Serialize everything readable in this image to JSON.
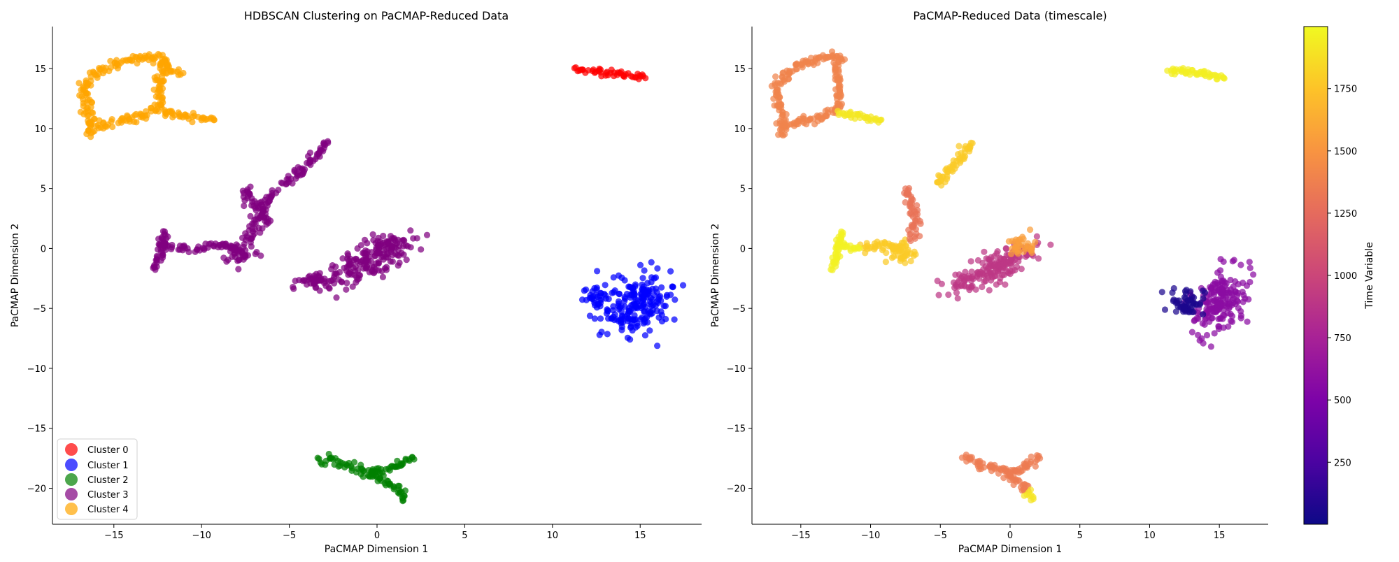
{
  "chart_data": [
    {
      "type": "scatter",
      "title": "HDBSCAN Clustering on PaCMAP-Reduced Data",
      "xlabel": "PaCMAP Dimension 1",
      "ylabel": "PaCMAP Dimension 2",
      "xlim": [
        -18.5,
        18.5
      ],
      "ylim": [
        -23,
        18.5
      ],
      "xticks": [
        -15,
        -10,
        -5,
        0,
        5,
        10,
        15
      ],
      "yticks": [
        -20,
        -15,
        -10,
        -5,
        0,
        5,
        10,
        15
      ],
      "grid": false,
      "legend_position": "lower-left",
      "series": [
        {
          "name": "Cluster 0",
          "color": "#ff0000",
          "shapes": [
            {
              "kind": "path",
              "pts": [
                [
                  11.3,
                  14.9
                ],
                [
                  12.5,
                  14.8
                ],
                [
                  14.0,
                  14.5
                ],
                [
                  15.3,
                  14.2
                ]
              ],
              "w": 0.4
            }
          ]
        },
        {
          "name": "Cluster 1",
          "color": "#0000ff",
          "shapes": [
            {
              "kind": "blob",
              "cx": 14.8,
              "cy": -4.6,
              "rx": 1.8,
              "ry": 2.8,
              "rot": -0.4
            },
            {
              "kind": "blob",
              "cx": 12.6,
              "cy": -4.1,
              "rx": 0.9,
              "ry": 0.9,
              "rot": 0
            }
          ]
        },
        {
          "name": "Cluster 2",
          "color": "#008000",
          "shapes": [
            {
              "kind": "path",
              "pts": [
                [
                  -3.3,
                  -17.4
                ],
                [
                  -1.5,
                  -18.2
                ],
                [
                  -0.3,
                  -18.8
                ],
                [
                  0.9,
                  -18.3
                ],
                [
                  2.0,
                  -17.4
                ]
              ],
              "w": 0.55
            },
            {
              "kind": "path",
              "pts": [
                [
                  -0.3,
                  -18.8
                ],
                [
                  0.5,
                  -19.5
                ],
                [
                  1.0,
                  -19.9
                ],
                [
                  1.3,
                  -20.2
                ],
                [
                  1.5,
                  -21.0
                ]
              ],
              "w": 0.45
            }
          ]
        },
        {
          "name": "Cluster 3",
          "color": "#800080",
          "shapes": [
            {
              "kind": "blob",
              "cx": -0.5,
              "cy": -1.2,
              "rx": 2.7,
              "ry": 1.2,
              "rot": 0.55
            },
            {
              "kind": "blob",
              "cx": 0.6,
              "cy": 0.3,
              "rx": 1.5,
              "ry": 0.9,
              "rot": 0.2
            },
            {
              "kind": "blob",
              "cx": -3.4,
              "cy": -2.8,
              "rx": 1.4,
              "ry": 0.8,
              "rot": 0.3
            },
            {
              "kind": "blob",
              "cx": -7.8,
              "cy": -0.3,
              "rx": 1.1,
              "ry": 1.0,
              "rot": 0
            },
            {
              "kind": "path",
              "pts": [
                [
                  -7.5,
                  5.0
                ],
                [
                  -6.8,
                  2.8
                ],
                [
                  -7.2,
                  0.5
                ]
              ],
              "w": 0.55
            },
            {
              "kind": "path",
              "pts": [
                [
                  -10.5,
                  0.0
                ],
                [
                  -9.2,
                  0.3
                ],
                [
                  -8.2,
                  0.1
                ]
              ],
              "w": 0.45
            },
            {
              "kind": "path",
              "pts": [
                [
                  -12.8,
                  -1.7
                ],
                [
                  -12.4,
                  -0.5
                ],
                [
                  -12.3,
                  0.5
                ],
                [
                  -12.1,
                  1.4
                ]
              ],
              "w": 0.4
            },
            {
              "kind": "path",
              "pts": [
                [
                  -12.3,
                  0.3
                ],
                [
                  -11.5,
                  0.1
                ],
                [
                  -10.8,
                  0.0
                ]
              ],
              "w": 0.35
            },
            {
              "kind": "path",
              "pts": [
                [
                  -5.3,
                  5.3
                ],
                [
                  -4.0,
                  7.0
                ],
                [
                  -2.8,
                  8.8
                ]
              ],
              "w": 0.45
            },
            {
              "kind": "path",
              "pts": [
                [
                  -5.8,
                  4.8
                ],
                [
                  -6.5,
                  3.5
                ],
                [
                  -6.3,
                  2.0
                ]
              ],
              "w": 0.35
            }
          ]
        },
        {
          "name": "Cluster 4",
          "color": "#ffa500",
          "shapes": [
            {
              "kind": "path",
              "pts": [
                [
                  -16.3,
                  9.4
                ],
                [
                  -16.3,
                  10.8
                ],
                [
                  -16.6,
                  12.0
                ],
                [
                  -16.7,
                  13.5
                ],
                [
                  -15.9,
                  14.8
                ],
                [
                  -14.4,
                  15.6
                ],
                [
                  -13.0,
                  16.1
                ],
                [
                  -12.1,
                  15.8
                ],
                [
                  -12.4,
                  14.3
                ],
                [
                  -12.3,
                  13.0
                ],
                [
                  -12.3,
                  11.7
                ],
                [
                  -13.4,
                  11.0
                ],
                [
                  -14.8,
                  10.6
                ],
                [
                  -16.0,
                  10.2
                ]
              ],
              "w": 0.5
            },
            {
              "kind": "path",
              "pts": [
                [
                  -12.3,
                  11.3
                ],
                [
                  -11.2,
                  11.1
                ],
                [
                  -10.1,
                  10.9
                ],
                [
                  -9.3,
                  10.7
                ]
              ],
              "w": 0.4
            },
            {
              "kind": "path",
              "pts": [
                [
                  -12.2,
                  15.7
                ],
                [
                  -11.7,
                  14.8
                ],
                [
                  -11.2,
                  14.5
                ]
              ],
              "w": 0.45
            }
          ]
        }
      ]
    },
    {
      "type": "scatter",
      "title": "PaCMAP-Reduced Data (timescale)",
      "xlabel": "PaCMAP Dimension 1",
      "ylabel": "PaCMAP Dimension 2",
      "xlim": [
        -18.5,
        18.5
      ],
      "ylim": [
        -23,
        18.5
      ],
      "xticks": [
        -15,
        -10,
        -5,
        0,
        5,
        10,
        15
      ],
      "yticks": [
        -20,
        -15,
        -10,
        -5,
        0,
        5,
        10,
        15
      ],
      "grid": false,
      "colormap": "plasma",
      "colorbar": {
        "label": "Time Variable",
        "min": 1,
        "max": 1999,
        "ticks": [
          250,
          500,
          750,
          1000,
          1250,
          1500,
          1750
        ]
      },
      "series": [
        {
          "time": 1950,
          "shapes": [
            {
              "kind": "path",
              "pts": [
                [
                  11.3,
                  14.9
                ],
                [
                  12.5,
                  14.8
                ],
                [
                  14.0,
                  14.5
                ],
                [
                  15.3,
                  14.2
                ]
              ],
              "w": 0.4
            }
          ]
        },
        {
          "time": 580,
          "shapes": [
            {
              "kind": "blob",
              "cx": 14.9,
              "cy": -4.6,
              "rx": 1.7,
              "ry": 2.8,
              "rot": -0.4
            }
          ]
        },
        {
          "time": 60,
          "shapes": [
            {
              "kind": "blob",
              "cx": 12.7,
              "cy": -4.4,
              "rx": 1.2,
              "ry": 1.2,
              "rot": 0
            }
          ]
        },
        {
          "time": 1350,
          "shapes": [
            {
              "kind": "path",
              "pts": [
                [
                  -3.3,
                  -17.4
                ],
                [
                  -1.5,
                  -18.2
                ],
                [
                  -0.3,
                  -18.8
                ],
                [
                  0.9,
                  -18.3
                ],
                [
                  2.0,
                  -17.4
                ]
              ],
              "w": 0.55
            },
            {
              "kind": "path",
              "pts": [
                [
                  -0.3,
                  -18.8
                ],
                [
                  0.5,
                  -19.5
                ],
                [
                  1.0,
                  -19.9
                ],
                [
                  1.3,
                  -20.2
                ]
              ],
              "w": 0.45
            }
          ]
        },
        {
          "time": 1900,
          "shapes": [
            {
              "kind": "path",
              "pts": [
                [
                  1.2,
                  -20.4
                ],
                [
                  1.5,
                  -21.0
                ]
              ],
              "w": 0.4
            }
          ]
        },
        {
          "time": 1400,
          "shapes": [
            {
              "kind": "path",
              "pts": [
                [
                  -16.3,
                  9.4
                ],
                [
                  -16.3,
                  10.8
                ],
                [
                  -16.6,
                  12.0
                ],
                [
                  -16.7,
                  13.5
                ],
                [
                  -15.9,
                  14.8
                ],
                [
                  -14.4,
                  15.6
                ],
                [
                  -13.0,
                  16.1
                ],
                [
                  -12.1,
                  15.8
                ],
                [
                  -12.4,
                  14.3
                ],
                [
                  -12.3,
                  13.0
                ],
                [
                  -12.3,
                  11.7
                ],
                [
                  -13.4,
                  11.0
                ],
                [
                  -14.8,
                  10.6
                ],
                [
                  -16.0,
                  10.2
                ]
              ],
              "w": 0.5
            }
          ]
        },
        {
          "time": 1920,
          "shapes": [
            {
              "kind": "path",
              "pts": [
                [
                  -12.3,
                  11.3
                ],
                [
                  -11.2,
                  11.1
                ],
                [
                  -10.1,
                  10.9
                ],
                [
                  -9.3,
                  10.7
                ]
              ],
              "w": 0.4
            }
          ]
        },
        {
          "time": 900,
          "shapes": [
            {
              "kind": "blob",
              "cx": -0.5,
              "cy": -1.2,
              "rx": 2.7,
              "ry": 1.2,
              "rot": 0.55
            },
            {
              "kind": "blob",
              "cx": -3.4,
              "cy": -2.8,
              "rx": 1.4,
              "ry": 0.8,
              "rot": 0.3
            }
          ]
        },
        {
          "time": 1550,
          "shapes": [
            {
              "kind": "blob",
              "cx": 0.9,
              "cy": 0.2,
              "rx": 1.0,
              "ry": 0.9,
              "rot": 0.2
            }
          ]
        },
        {
          "time": 1780,
          "shapes": [
            {
              "kind": "blob",
              "cx": -7.8,
              "cy": -0.3,
              "rx": 1.1,
              "ry": 1.0,
              "rot": 0
            },
            {
              "kind": "path",
              "pts": [
                [
                  -5.3,
                  5.3
                ],
                [
                  -4.0,
                  7.0
                ],
                [
                  -2.8,
                  8.8
                ]
              ],
              "w": 0.45
            },
            {
              "kind": "path",
              "pts": [
                [
                  -10.5,
                  0.0
                ],
                [
                  -9.2,
                  0.3
                ],
                [
                  -8.2,
                  0.1
                ]
              ],
              "w": 0.45
            }
          ]
        },
        {
          "time": 1300,
          "shapes": [
            {
              "kind": "path",
              "pts": [
                [
                  -7.5,
                  5.0
                ],
                [
                  -6.8,
                  2.8
                ],
                [
                  -7.2,
                  0.8
                ]
              ],
              "w": 0.55
            }
          ]
        },
        {
          "time": 1960,
          "shapes": [
            {
              "kind": "path",
              "pts": [
                [
                  -12.8,
                  -1.7
                ],
                [
                  -12.4,
                  -0.5
                ],
                [
                  -12.3,
                  0.5
                ],
                [
                  -12.1,
                  1.4
                ]
              ],
              "w": 0.4
            },
            {
              "kind": "path",
              "pts": [
                [
                  -12.3,
                  0.3
                ],
                [
                  -11.5,
                  0.1
                ],
                [
                  -10.8,
                  0.0
                ]
              ],
              "w": 0.35
            }
          ]
        }
      ]
    }
  ]
}
